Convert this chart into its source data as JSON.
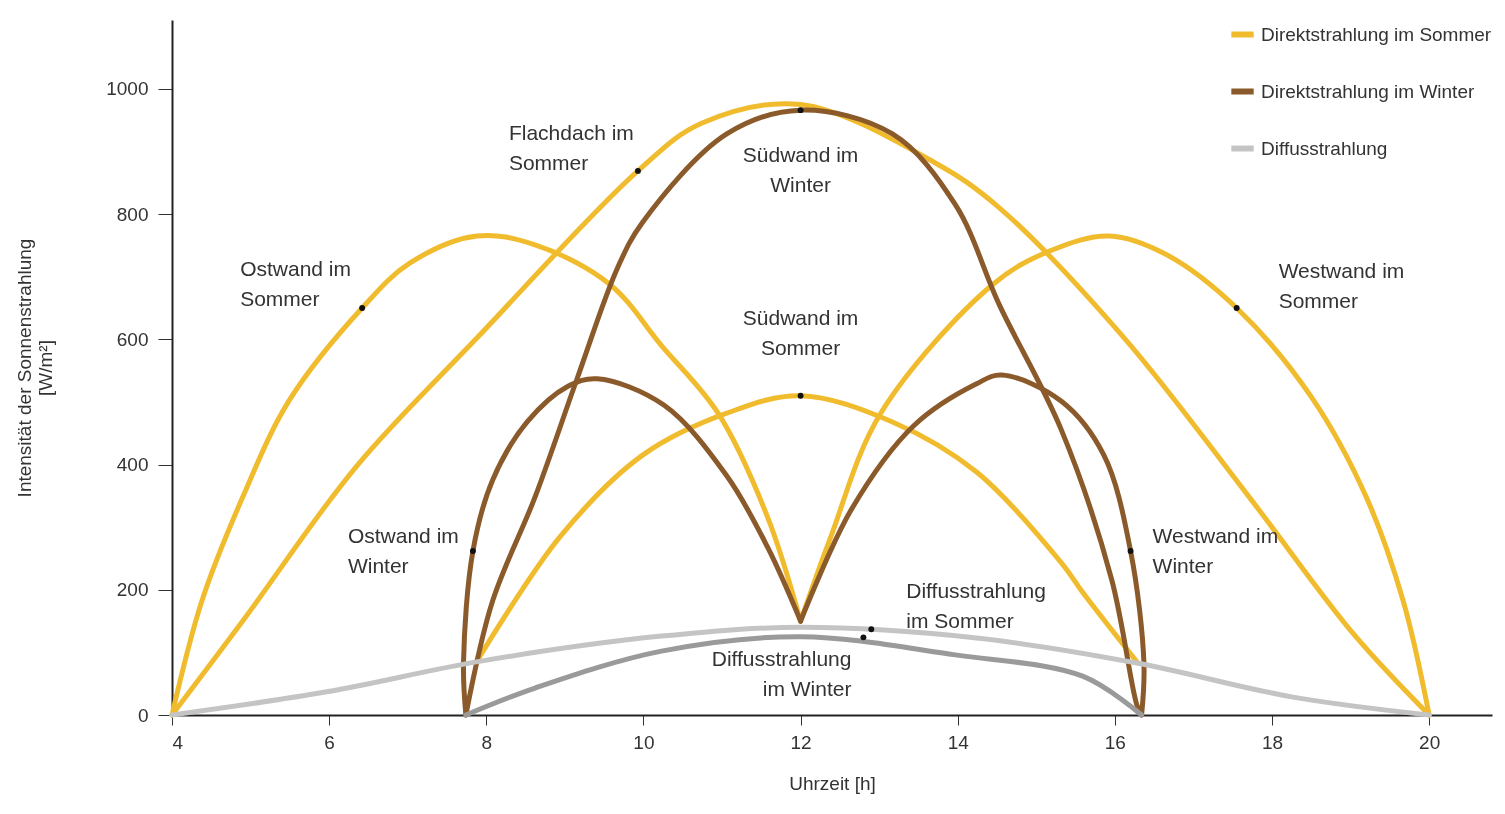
{
  "chart_data": {
    "type": "line",
    "xlabel": "Uhrzeit [h]",
    "ylabel": "Intensität der Sonnenstrahlung\n[W/m²]",
    "xlim": [
      4,
      20.8
    ],
    "ylim": [
      0,
      1110
    ],
    "xticks": [
      4,
      6,
      8,
      10,
      12,
      14,
      16,
      18,
      20
    ],
    "yticks": [
      0,
      200,
      400,
      600,
      800,
      1000
    ],
    "legend": "top right",
    "series": [
      {
        "name": "Direktstrahlung im Sommer",
        "color": "#f0bc2e",
        "x": [
          4,
          4.9,
          6.34,
          7.88,
          9.93,
          10.74,
          12,
          13.71,
          14.53,
          16.12,
          17.71,
          19.04,
          20
        ],
        "values": [
          0,
          150,
          396,
          602,
          869,
          945,
          975,
          882,
          810,
          602,
          348,
          129,
          0
        ]
      },
      {
        "color": "#f0bc2e",
        "x": [
          4,
          4.38,
          4.9,
          5.49,
          6.42,
          7.03,
          7.88,
          8.62,
          9.57,
          10.23,
          10.95,
          11.58,
          12
        ],
        "values": [
          0,
          182,
          348,
          502,
          650,
          722,
          765,
          751,
          688,
          590,
          482,
          316,
          150
        ]
      },
      {
        "color": "#f0bc2e",
        "x": [
          12,
          12.38,
          13.02,
          14.45,
          15.17,
          15.93,
          16.66,
          17.55,
          18.5,
          19.2,
          19.67,
          20
        ],
        "values": [
          150,
          283,
          482,
          688,
          741,
          765,
          735,
          650,
          508,
          348,
          182,
          0
        ]
      },
      {
        "color": "#f0bc2e",
        "x": [
          7.9,
          8.94,
          9.99,
          11.06,
          12,
          13.17,
          14.24,
          15.32,
          15.59,
          16.28
        ],
        "values": [
          90,
          285,
          415,
          482,
          510,
          468,
          388,
          243,
          196,
          85
        ]
      },
      {
        "name": "Direktstrahlung im Winter",
        "color": "#8b5a2b",
        "x": [
          7.74,
          8.08,
          8.62,
          9.15,
          9.67,
          9.99,
          11.06,
          12,
          13.17,
          13.97,
          14.53,
          15.32,
          15.96,
          16.28,
          16.34
        ],
        "values": [
          0,
          182,
          348,
          535,
          714,
          787,
          928,
          966,
          928,
          815,
          655,
          455,
          216,
          16,
          0
        ]
      },
      {
        "color": "#8b5a2b",
        "x": [
          7.74,
          7.71,
          7.83,
          8.08,
          8.52,
          9.04,
          9.41,
          10.26,
          11.06,
          11.58,
          12
        ],
        "values": [
          0,
          83,
          262,
          375,
          468,
          525,
          537,
          495,
          382,
          268,
          150
        ]
      },
      {
        "color": "#8b5a2b",
        "x": [
          12,
          12.65,
          13.44,
          14.24,
          14.56,
          15.32,
          15.86,
          16.2,
          16.37,
          16.34
        ],
        "values": [
          150,
          329,
          462,
          529,
          543,
          501,
          415,
          262,
          83,
          0
        ]
      },
      {
        "name": "Diffusstrahlung",
        "color": "#c4c4c4",
        "x": [
          4,
          5.97,
          7.93,
          10.23,
          12,
          14.24,
          16.28,
          18.25,
          20
        ],
        "values": [
          0,
          37,
          86,
          126,
          140,
          123,
          83,
          29,
          0
        ]
      },
      {
        "color": "#9a9a9a",
        "x": [
          7.74,
          8.62,
          10.23,
          12,
          13.97,
          15.59,
          16.34
        ],
        "values": [
          0,
          43,
          102,
          125,
          96,
          62,
          0
        ]
      }
    ],
    "annotations": [
      {
        "text": "Flachdach im\nSommer",
        "x": 9.93,
        "y": 869
      },
      {
        "text": "Südwand im\nWinter",
        "x": 12,
        "y": 966
      },
      {
        "text": "Ostwand im\nSommer",
        "x": 6.42,
        "y": 650
      },
      {
        "text": "Westwand im\nSommer",
        "x": 17.55,
        "y": 650
      },
      {
        "text": "Südwand im\nSommer",
        "x": 12,
        "y": 510
      },
      {
        "text": "Ostwand im\nWinter",
        "x": 7.83,
        "y": 262
      },
      {
        "text": "Westwand im\nWinter",
        "x": 16.2,
        "y": 262
      },
      {
        "text": "Diffusstrahlung\nim Sommer",
        "x": 12.9,
        "y": 137
      },
      {
        "text": "Diffusstrahlung\nim Winter",
        "x": 12.8,
        "y": 124
      }
    ]
  }
}
